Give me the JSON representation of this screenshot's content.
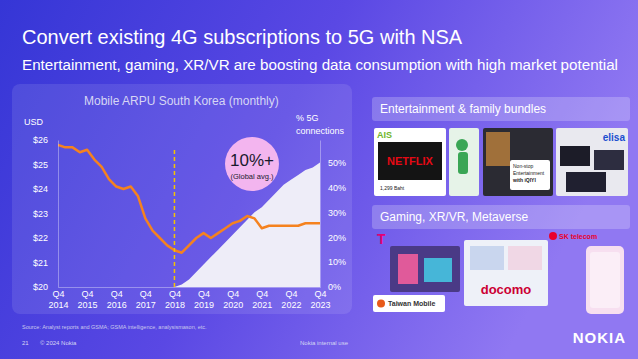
{
  "title": "Convert existing 4G subscriptions to 5G with NSA",
  "subtitle": "Entertainment, gaming, XR/VR are boosting data consumption with high market potential",
  "chart_data": {
    "type": "line",
    "title": "Mobile ARPU South Korea (monthly)",
    "y_label": "USD",
    "y2_label": [
      "% 5G",
      "connections"
    ],
    "categories": [
      "Q4 2014",
      null,
      null,
      null,
      "Q4 2015",
      null,
      null,
      null,
      "Q4 2016",
      null,
      null,
      null,
      "Q4 2017",
      null,
      null,
      null,
      "Q4 2018",
      null,
      null,
      null,
      "Q4 2019",
      null,
      null,
      null,
      "Q4 2020",
      null,
      null,
      null,
      "Q4 2021",
      null,
      null,
      null,
      "Q4 2022",
      null,
      null,
      null,
      "Q4 2023"
    ],
    "series": [
      {
        "type": "line",
        "axis": "y",
        "color": "#f5821f",
        "values": [
          25.8,
          25.7,
          25.7,
          25.5,
          25.6,
          25.2,
          24.9,
          24.4,
          24.1,
          24.0,
          24.1,
          23.7,
          22.8,
          22.3,
          22.0,
          21.7,
          21.5,
          21.4,
          21.7,
          22.0,
          22.2,
          22.0,
          22.2,
          22.4,
          22.6,
          22.7,
          22.9,
          22.8,
          22.4,
          22.5,
          22.5,
          22.5,
          22.5,
          22.5,
          22.6,
          22.6,
          22.6
        ]
      },
      {
        "type": "area",
        "axis": "y2",
        "color": "#eeedf8",
        "values": [
          null,
          null,
          null,
          null,
          null,
          null,
          null,
          null,
          null,
          null,
          null,
          null,
          null,
          null,
          null,
          null,
          0,
          1,
          3,
          6,
          9,
          12,
          15,
          18,
          21,
          24,
          27,
          30,
          32,
          35,
          38,
          41,
          43,
          45,
          47,
          48,
          50
        ]
      }
    ],
    "ylim": [
      20,
      26
    ],
    "yticks": [
      {
        "value": 20,
        "label": "$20"
      },
      {
        "value": 21,
        "label": "$21"
      },
      {
        "value": 22,
        "label": "$22"
      },
      {
        "value": 23,
        "label": "$23"
      },
      {
        "value": 24,
        "label": "$24"
      },
      {
        "value": 25,
        "label": "$25"
      },
      {
        "value": 26,
        "label": "$26"
      }
    ],
    "y2lim": [
      0,
      59
    ],
    "y2ticks": [
      {
        "value": 0,
        "label": "0%"
      },
      {
        "value": 10,
        "label": "10%"
      },
      {
        "value": 20,
        "label": "20%"
      },
      {
        "value": 30,
        "label": "30%"
      },
      {
        "value": 40,
        "label": "40%"
      },
      {
        "value": 50,
        "label": "50%"
      }
    ],
    "grid": false,
    "reference_lines": [
      {
        "x": 16,
        "color": "#f5c400",
        "line_style": "dashed"
      }
    ],
    "annotations": [
      {
        "text": "10%+"
      },
      {
        "text": "(Global avg.)"
      }
    ]
  },
  "panels": [
    {
      "title": "Entertainment & family bundles",
      "texts": [
        "AIS",
        "NETFLIX",
        "1,299 Baht",
        "Non-stop",
        "Entertainment",
        "with iQIYI",
        "elisa"
      ]
    },
    {
      "title": "Gaming, XR/VR, Metaverse",
      "texts": [
        "T",
        "Taiwan Mobile",
        "docomo",
        "SK telecom"
      ]
    }
  ],
  "footer": {
    "source": "Source: Analyst reports and GSMA; GSMA intelligence, analysismason, etc.",
    "page": 21,
    "copyright": "© 2024 Nokia",
    "classification": "Nokia internal use",
    "logo": "NOKIA"
  }
}
